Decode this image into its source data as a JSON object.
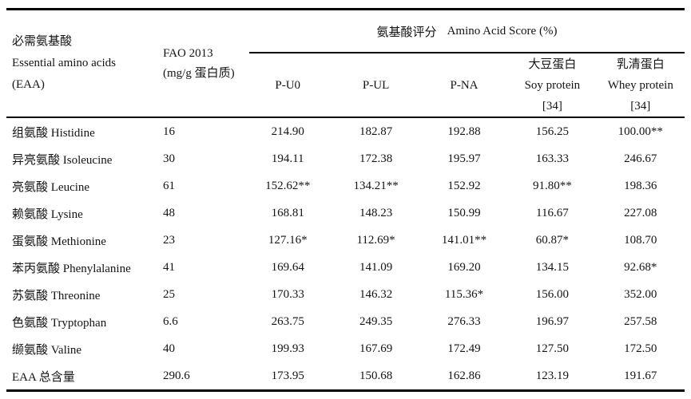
{
  "table": {
    "col1_header": {
      "line1": "必需氨基酸",
      "line2": "Essential amino acids",
      "line3": "(EAA)"
    },
    "col2_header": {
      "line1": "FAO 2013",
      "line2": "(mg/g 蛋白质)"
    },
    "spanner": {
      "zh": "氨基酸评分",
      "en": "Amino Acid Score (%)"
    },
    "subheaders": [
      {
        "lines": [
          "P-U0"
        ]
      },
      {
        "lines": [
          "P-UL"
        ]
      },
      {
        "lines": [
          "P-NA"
        ]
      },
      {
        "lines": [
          "大豆蛋白",
          "Soy protein",
          "[34]"
        ]
      },
      {
        "lines": [
          "乳清蛋白",
          "Whey protein",
          "[34]"
        ]
      }
    ],
    "rows": [
      {
        "name": "组氨酸 Histidine",
        "fao": "16",
        "values": [
          "214.90",
          "182.87",
          "192.88",
          "156.25",
          "100.00**"
        ]
      },
      {
        "name": "异亮氨酸 Isoleucine",
        "fao": "30",
        "values": [
          "194.11",
          "172.38",
          "195.97",
          "163.33",
          "246.67"
        ]
      },
      {
        "name": "亮氨酸 Leucine",
        "fao": "61",
        "values": [
          "152.62**",
          "134.21**",
          "152.92",
          "91.80**",
          "198.36"
        ]
      },
      {
        "name": "赖氨酸 Lysine",
        "fao": "48",
        "values": [
          "168.81",
          "148.23",
          "150.99",
          "116.67",
          "227.08"
        ]
      },
      {
        "name": "蛋氨酸 Methionine",
        "fao": "23",
        "values": [
          "127.16*",
          "112.69*",
          "141.01**",
          "60.87*",
          "108.70"
        ]
      },
      {
        "name": "苯丙氨酸 Phenylalanine",
        "fao": "41",
        "values": [
          "169.64",
          "141.09",
          "169.20",
          "134.15",
          "92.68*"
        ]
      },
      {
        "name": "苏氨酸 Threonine",
        "fao": "25",
        "values": [
          "170.33",
          "146.32",
          "115.36*",
          "156.00",
          "352.00"
        ]
      },
      {
        "name": "色氨酸 Tryptophan",
        "fao": "6.6",
        "values": [
          "263.75",
          "249.35",
          "276.33",
          "196.97",
          "257.58"
        ]
      },
      {
        "name": "缬氨酸 Valine",
        "fao": "40",
        "values": [
          "199.93",
          "167.69",
          "172.49",
          "127.50",
          "172.50"
        ]
      },
      {
        "name": "EAA 总含量",
        "fao": "290.6",
        "values": [
          "173.95",
          "150.68",
          "162.86",
          "123.19",
          "191.67"
        ]
      }
    ]
  },
  "colors": {
    "text": "#141414",
    "rule": "#000000",
    "background": "#ffffff"
  }
}
